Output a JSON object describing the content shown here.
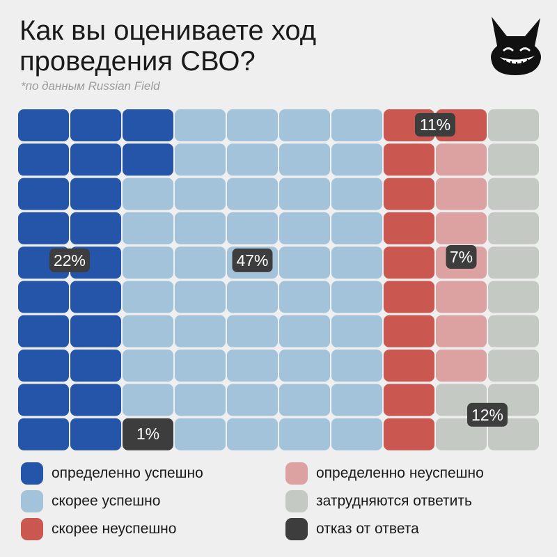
{
  "title": "Как вы оцениваете ход проведения СВО?",
  "subtitle": "*по данным Russian Field",
  "icons": {
    "mascot": "dog-mascot-icon"
  },
  "chart_data": {
    "type": "waffle",
    "total_cells": 100,
    "categories": [
      {
        "name": "определенно успешно",
        "value": 22,
        "label": "22%",
        "color": "#2555a8"
      },
      {
        "name": "скорее успешно",
        "value": 47,
        "label": "47%",
        "color": "#a3c3da"
      },
      {
        "name": "отказ от ответа",
        "value": 1,
        "label": "1%",
        "color": "#3d3d3d"
      },
      {
        "name": "скорее неуспешно",
        "value": 11,
        "label": "11%",
        "color": "#cb5850"
      },
      {
        "name": "определенно неуспешно",
        "value": 7,
        "label": "7%",
        "color": "#dca1a1"
      },
      {
        "name": "затрудняются ответить",
        "value": 12,
        "label": "12%",
        "color": "#c5c9c3"
      }
    ],
    "label_color": "#3d3d3d",
    "label_text_color": "#ffffff"
  },
  "legend": {
    "items": [
      {
        "label": "определенно успешно",
        "color": "#2555a8"
      },
      {
        "label": "скорее успешно",
        "color": "#a3c3da"
      },
      {
        "label": "скорее неуспешно",
        "color": "#cb5850"
      },
      {
        "label": "определенно неуспешно",
        "color": "#dca1a1"
      },
      {
        "label": "затрудняются ответить",
        "color": "#c5c9c3"
      },
      {
        "label": "отказ от ответа",
        "color": "#3d3d3d"
      }
    ]
  }
}
